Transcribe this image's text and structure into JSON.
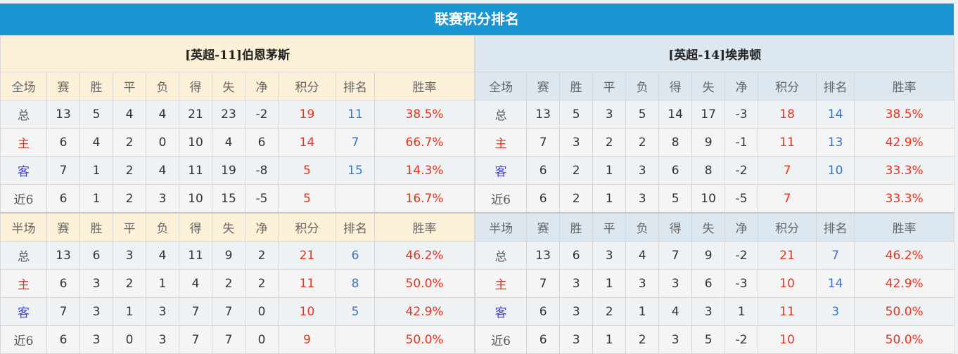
{
  "title": "联赛积分排名",
  "columns": [
    "赛",
    "胜",
    "平",
    "负",
    "得",
    "失",
    "净",
    "积分",
    "排名",
    "胜率"
  ],
  "teams": [
    {
      "name": "[英超-11]伯恩茅斯",
      "sections": [
        {
          "label": "全场",
          "rows": [
            {
              "label": "总",
              "type": "total",
              "v": [
                "13",
                "5",
                "4",
                "4",
                "21",
                "23",
                "-2",
                "19",
                "11",
                "38.5%"
              ]
            },
            {
              "label": "主",
              "type": "home",
              "v": [
                "6",
                "4",
                "2",
                "0",
                "10",
                "4",
                "6",
                "14",
                "7",
                "66.7%"
              ]
            },
            {
              "label": "客",
              "type": "away",
              "v": [
                "7",
                "1",
                "2",
                "4",
                "11",
                "19",
                "-8",
                "5",
                "15",
                "14.3%"
              ]
            },
            {
              "label": "近6",
              "type": "recent",
              "v": [
                "6",
                "1",
                "2",
                "3",
                "10",
                "15",
                "-5",
                "5",
                "",
                "16.7%"
              ]
            }
          ]
        },
        {
          "label": "半场",
          "rows": [
            {
              "label": "总",
              "type": "total",
              "v": [
                "13",
                "6",
                "3",
                "4",
                "11",
                "9",
                "2",
                "21",
                "6",
                "46.2%"
              ]
            },
            {
              "label": "主",
              "type": "home",
              "v": [
                "6",
                "3",
                "2",
                "1",
                "4",
                "2",
                "2",
                "11",
                "8",
                "50.0%"
              ]
            },
            {
              "label": "客",
              "type": "away",
              "v": [
                "7",
                "3",
                "1",
                "3",
                "7",
                "7",
                "0",
                "10",
                "5",
                "42.9%"
              ]
            },
            {
              "label": "近6",
              "type": "recent",
              "v": [
                "6",
                "3",
                "0",
                "3",
                "7",
                "7",
                "0",
                "9",
                "",
                "50.0%"
              ]
            }
          ]
        }
      ]
    },
    {
      "name": "[英超-14]埃弗顿",
      "sections": [
        {
          "label": "全场",
          "rows": [
            {
              "label": "总",
              "type": "total",
              "v": [
                "13",
                "5",
                "3",
                "5",
                "14",
                "17",
                "-3",
                "18",
                "14",
                "38.5%"
              ]
            },
            {
              "label": "主",
              "type": "home",
              "v": [
                "7",
                "3",
                "2",
                "2",
                "8",
                "9",
                "-1",
                "11",
                "13",
                "42.9%"
              ]
            },
            {
              "label": "客",
              "type": "away",
              "v": [
                "6",
                "2",
                "1",
                "3",
                "6",
                "8",
                "-2",
                "7",
                "10",
                "33.3%"
              ]
            },
            {
              "label": "近6",
              "type": "recent",
              "v": [
                "6",
                "2",
                "1",
                "3",
                "5",
                "10",
                "-5",
                "7",
                "",
                "33.3%"
              ]
            }
          ]
        },
        {
          "label": "半场",
          "rows": [
            {
              "label": "总",
              "type": "total",
              "v": [
                "13",
                "6",
                "3",
                "4",
                "7",
                "9",
                "-2",
                "21",
                "7",
                "46.2%"
              ]
            },
            {
              "label": "主",
              "type": "home",
              "v": [
                "7",
                "3",
                "1",
                "3",
                "3",
                "6",
                "-3",
                "10",
                "14",
                "42.9%"
              ]
            },
            {
              "label": "客",
              "type": "away",
              "v": [
                "6",
                "3",
                "2",
                "1",
                "4",
                "3",
                "1",
                "11",
                "3",
                "50.0%"
              ]
            },
            {
              "label": "近6",
              "type": "recent",
              "v": [
                "6",
                "3",
                "1",
                "2",
                "3",
                "5",
                "-2",
                "10",
                "",
                "50.0%"
              ]
            }
          ]
        }
      ]
    }
  ]
}
